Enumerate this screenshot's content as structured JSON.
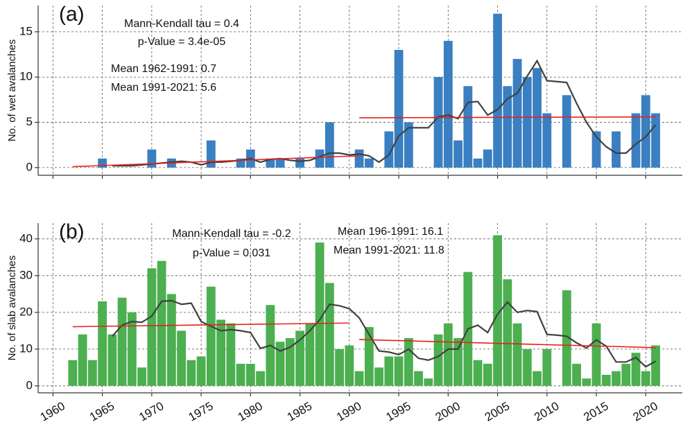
{
  "chart_data": [
    {
      "type": "bar",
      "panel_label": "(a)",
      "ylabel": "No. of wet avalanches",
      "annotations": [
        "Mann-Kendall tau = 0.4",
        "p-Value = 3.4e-05",
        "Mean 1962-1991: 0.7",
        "Mean 1991-2021: 5.6"
      ],
      "x": [
        1962,
        1963,
        1964,
        1965,
        1966,
        1967,
        1968,
        1969,
        1970,
        1971,
        1972,
        1973,
        1974,
        1975,
        1976,
        1977,
        1978,
        1979,
        1980,
        1981,
        1982,
        1983,
        1984,
        1985,
        1986,
        1987,
        1988,
        1989,
        1990,
        1991,
        1992,
        1993,
        1994,
        1995,
        1996,
        1997,
        1998,
        1999,
        2000,
        2001,
        2002,
        2003,
        2004,
        2005,
        2006,
        2007,
        2008,
        2009,
        2010,
        2011,
        2012,
        2013,
        2014,
        2015,
        2016,
        2017,
        2018,
        2019,
        2020,
        2021
      ],
      "values": [
        0,
        0,
        0,
        1,
        0,
        0,
        0,
        0,
        2,
        0,
        1,
        0,
        0,
        0,
        3,
        0,
        0,
        1,
        2,
        0,
        1,
        1,
        0,
        1,
        0,
        2,
        5,
        0,
        0,
        2,
        1,
        0,
        4,
        13,
        5,
        0,
        0,
        10,
        14,
        3,
        9,
        1,
        2,
        17,
        9,
        12,
        10,
        11,
        6,
        0,
        8,
        0,
        0,
        4,
        0,
        4,
        0,
        6,
        8,
        6
      ],
      "color": "#3a7fc1",
      "smooth": {
        "color": "#404040",
        "values": [
          null,
          null,
          null,
          null,
          0.2,
          0.2,
          0.2,
          0.3,
          0.4,
          0.5,
          0.6,
          0.7,
          0.6,
          0.3,
          0.6,
          0.6,
          0.7,
          0.8,
          1.0,
          0.6,
          0.9,
          1.0,
          0.8,
          0.7,
          0.8,
          1.2,
          1.6,
          1.6,
          1.4,
          1.5,
          1.3,
          0.6,
          1.4,
          3.5,
          4.4,
          4.4,
          4.4,
          5.6,
          5.8,
          5.4,
          7.2,
          7.3,
          5.8,
          6.4,
          7.6,
          8.2,
          10.1,
          11.8,
          9.6,
          9.5,
          9.4,
          7.1,
          5.0,
          3.4,
          2.3,
          1.6,
          1.6,
          2.6,
          3.4,
          4.7
        ]
      },
      "trend": [
        {
          "color": "#e8201a",
          "x": [
            1962,
            1991
          ],
          "values": [
            0.1,
            1.3
          ]
        },
        {
          "color": "#e8201a",
          "x": [
            1991,
            2021
          ],
          "values": [
            5.5,
            5.6
          ]
        }
      ],
      "xlim": [
        1958.5,
        2023.7
      ],
      "xticks": [
        1960,
        1965,
        1970,
        1975,
        1980,
        1985,
        1990,
        1995,
        2000,
        2005,
        2010,
        2015,
        2020
      ],
      "show_xtick_labels": false,
      "ylim": [
        -0.85,
        17.9
      ],
      "yticks": [
        0,
        5,
        10,
        15
      ],
      "grid": true
    },
    {
      "type": "bar",
      "panel_label": "(b)",
      "ylabel": "No. of slab avalanches",
      "annotations": [
        "Mann-Kendall tau = -0.2",
        "p-Value = 0.031",
        "Mean 196-1991: 16.1",
        "Mean 1991-2021: 11.8"
      ],
      "x": [
        1962,
        1963,
        1964,
        1965,
        1966,
        1967,
        1968,
        1969,
        1970,
        1971,
        1972,
        1973,
        1974,
        1975,
        1976,
        1977,
        1978,
        1979,
        1980,
        1981,
        1982,
        1983,
        1984,
        1985,
        1986,
        1987,
        1988,
        1989,
        1990,
        1991,
        1992,
        1993,
        1994,
        1995,
        1996,
        1997,
        1998,
        1999,
        2000,
        2001,
        2002,
        2003,
        2004,
        2005,
        2006,
        2007,
        2008,
        2009,
        2010,
        2011,
        2012,
        2013,
        2014,
        2015,
        2016,
        2017,
        2018,
        2019,
        2020,
        2021
      ],
      "values": [
        7,
        14,
        7,
        23,
        14,
        24,
        20,
        5,
        32,
        34,
        25,
        15,
        7,
        8,
        27,
        18,
        17,
        6,
        6,
        4,
        22,
        12,
        13,
        15,
        17,
        39,
        28,
        10,
        11,
        4,
        16,
        5,
        8,
        8,
        13,
        4,
        2,
        14,
        17,
        13,
        31,
        7,
        6,
        41,
        29,
        17,
        10,
        4,
        10,
        0,
        26,
        6,
        2,
        17,
        3,
        4,
        6,
        9,
        4,
        11
      ],
      "color": "#4caf50",
      "smooth": {
        "color": "#404040",
        "values": [
          null,
          null,
          null,
          null,
          13.5,
          16.5,
          17.5,
          17.3,
          19,
          23,
          23.2,
          22.2,
          22.5,
          17.5,
          16.2,
          15,
          15.3,
          15,
          14.5,
          10.2,
          11,
          9.5,
          10.5,
          12.5,
          15,
          18,
          22.2,
          21.8,
          21,
          18.5,
          14,
          9.5,
          9.2,
          8.5,
          10,
          7.5,
          7,
          8,
          10,
          10,
          15.5,
          16.5,
          14.5,
          19.5,
          22.8,
          20,
          20.5,
          20.2,
          14,
          13.8,
          13.5,
          11.7,
          10.3,
          12.5,
          10.8,
          6.5,
          6.5,
          7.7,
          5.2,
          6.7
        ]
      },
      "trend": [
        {
          "color": "#e8201a",
          "x": [
            1962,
            1990
          ],
          "values": [
            16.1,
            17.1
          ]
        },
        {
          "color": "#e8201a",
          "x": [
            1991,
            2021
          ],
          "values": [
            12.6,
            10.4
          ]
        }
      ],
      "xlim": [
        1958.5,
        2023.7
      ],
      "xticks": [
        1960,
        1965,
        1970,
        1975,
        1980,
        1985,
        1990,
        1995,
        2000,
        2005,
        2010,
        2015,
        2020
      ],
      "show_xtick_labels": true,
      "ylim": [
        -1.9,
        44.3
      ],
      "yticks": [
        0,
        10,
        20,
        30,
        40
      ],
      "grid": true
    }
  ]
}
